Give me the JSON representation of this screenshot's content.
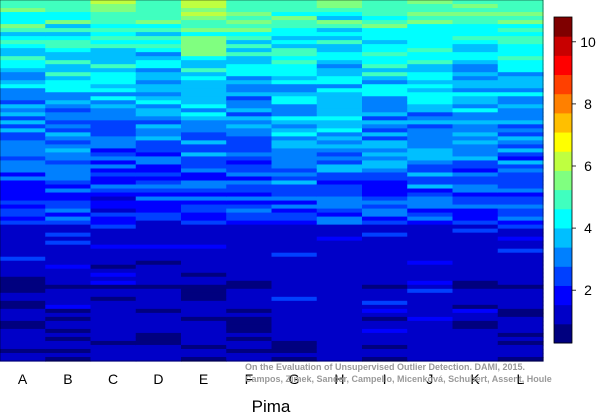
{
  "chart_data": {
    "type": "heatmap",
    "xlabel": "Pima",
    "categories": [
      "A",
      "B",
      "C",
      "D",
      "E",
      "F",
      "G",
      "H",
      "I",
      "J",
      "K",
      "L"
    ],
    "colorbar": {
      "range": [
        0.3,
        10.8
      ],
      "ticks": [
        2,
        4,
        6,
        8,
        10
      ],
      "colors": [
        "#00007F",
        "#0000C8",
        "#0000FF",
        "#0040FF",
        "#0080FF",
        "#00BFFF",
        "#00FFFF",
        "#40FFBF",
        "#80FF80",
        "#BFFF40",
        "#FFFF00",
        "#FFBF00",
        "#FF8000",
        "#FF4000",
        "#FF0000",
        "#C80000",
        "#7F0000"
      ]
    },
    "rows_approx": 90,
    "profile_note_values": {
      "A": [
        5.2,
        3.4,
        2.4,
        1.6,
        1.0
      ],
      "B": [
        5.0,
        3.6,
        2.6,
        1.7,
        1.1
      ],
      "C": [
        5.3,
        3.6,
        2.3,
        1.5,
        1.0
      ],
      "D": [
        5.0,
        3.5,
        2.4,
        1.6,
        1.0
      ],
      "E": [
        5.8,
        3.8,
        2.6,
        1.6,
        1.0
      ],
      "F": [
        5.1,
        3.5,
        2.4,
        1.6,
        1.0
      ],
      "G": [
        5.2,
        3.8,
        2.8,
        2.0,
        1.2
      ],
      "H": [
        5.0,
        3.6,
        2.8,
        2.2,
        1.6
      ],
      "I": [
        5.4,
        3.8,
        2.6,
        1.8,
        1.1
      ],
      "J": [
        5.3,
        3.7,
        2.9,
        2.3,
        1.4
      ],
      "K": [
        5.1,
        3.6,
        2.5,
        1.7,
        1.1
      ],
      "L": [
        5.3,
        3.6,
        2.5,
        1.6,
        1.0
      ]
    },
    "legend": "colorbar right"
  },
  "credit": {
    "line1": "On the Evaluation of Unsupervised Outlier Detection. DAMI, 2015.",
    "line2": "Campos, Zimek, Sander, Campello, Micenková, Schubert, Assent, Houle"
  }
}
